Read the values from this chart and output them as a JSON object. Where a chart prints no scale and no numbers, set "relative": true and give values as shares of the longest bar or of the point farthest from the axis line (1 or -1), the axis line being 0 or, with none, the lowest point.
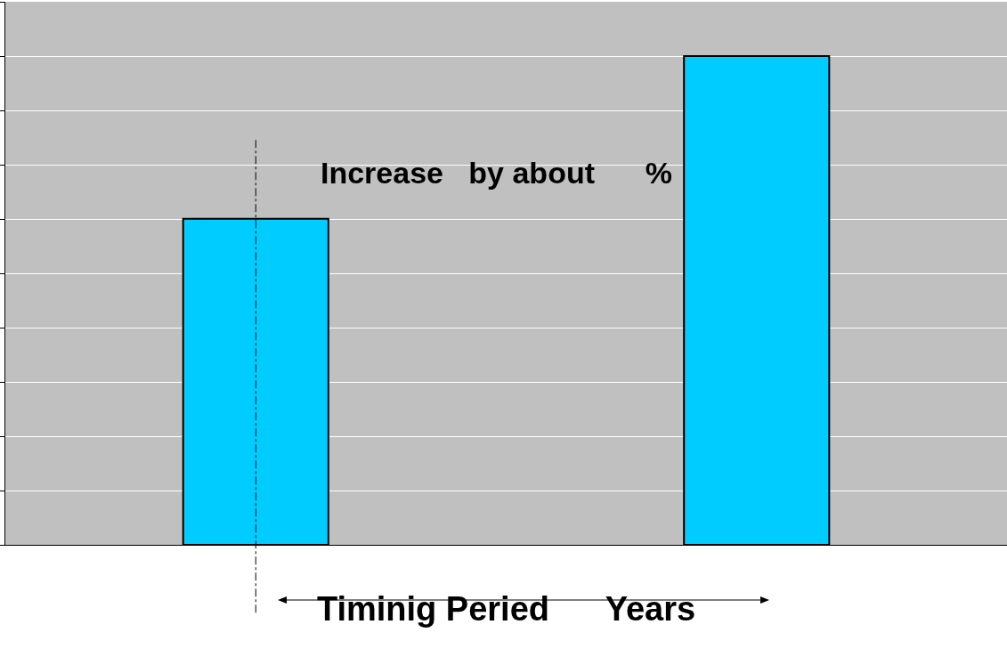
{
  "chart_data": {
    "type": "bar",
    "relative": true,
    "xlabel": "Timinig Peried      Years",
    "categories": [
      null,
      null
    ],
    "values": [
      0.667,
      1
    ],
    "color": "#00ccff",
    "grid": "y",
    "annotations": [
      "Increase   by about      %"
    ]
  }
}
